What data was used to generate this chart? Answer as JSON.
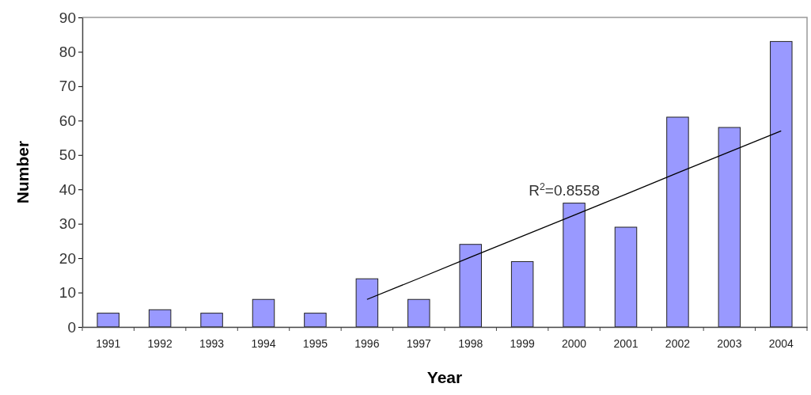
{
  "chart_data": {
    "type": "bar",
    "xlabel": "Year",
    "ylabel": "Number",
    "categories": [
      "1991",
      "1992",
      "1993",
      "1994",
      "1995",
      "1996",
      "1997",
      "1998",
      "1999",
      "2000",
      "2001",
      "2002",
      "2003",
      "2004"
    ],
    "series": [
      {
        "color": "#9999ff",
        "values": [
          4,
          5,
          4,
          8,
          4,
          14,
          8,
          24,
          19,
          36,
          29,
          61,
          58,
          83
        ]
      },
      {
        "type": "line",
        "color": "#000000",
        "values": [
          null,
          null,
          null,
          null,
          null,
          8,
          14.1,
          20.3,
          26.4,
          32.5,
          38.6,
          44.8,
          50.9,
          57
        ]
      }
    ],
    "ylim": [
      0,
      90
    ],
    "yticks": [
      0,
      10,
      20,
      30,
      40,
      50,
      60,
      70,
      80,
      90
    ],
    "annotations": [
      "R$^{2}$=0.8558"
    ],
    "grid": false
  }
}
